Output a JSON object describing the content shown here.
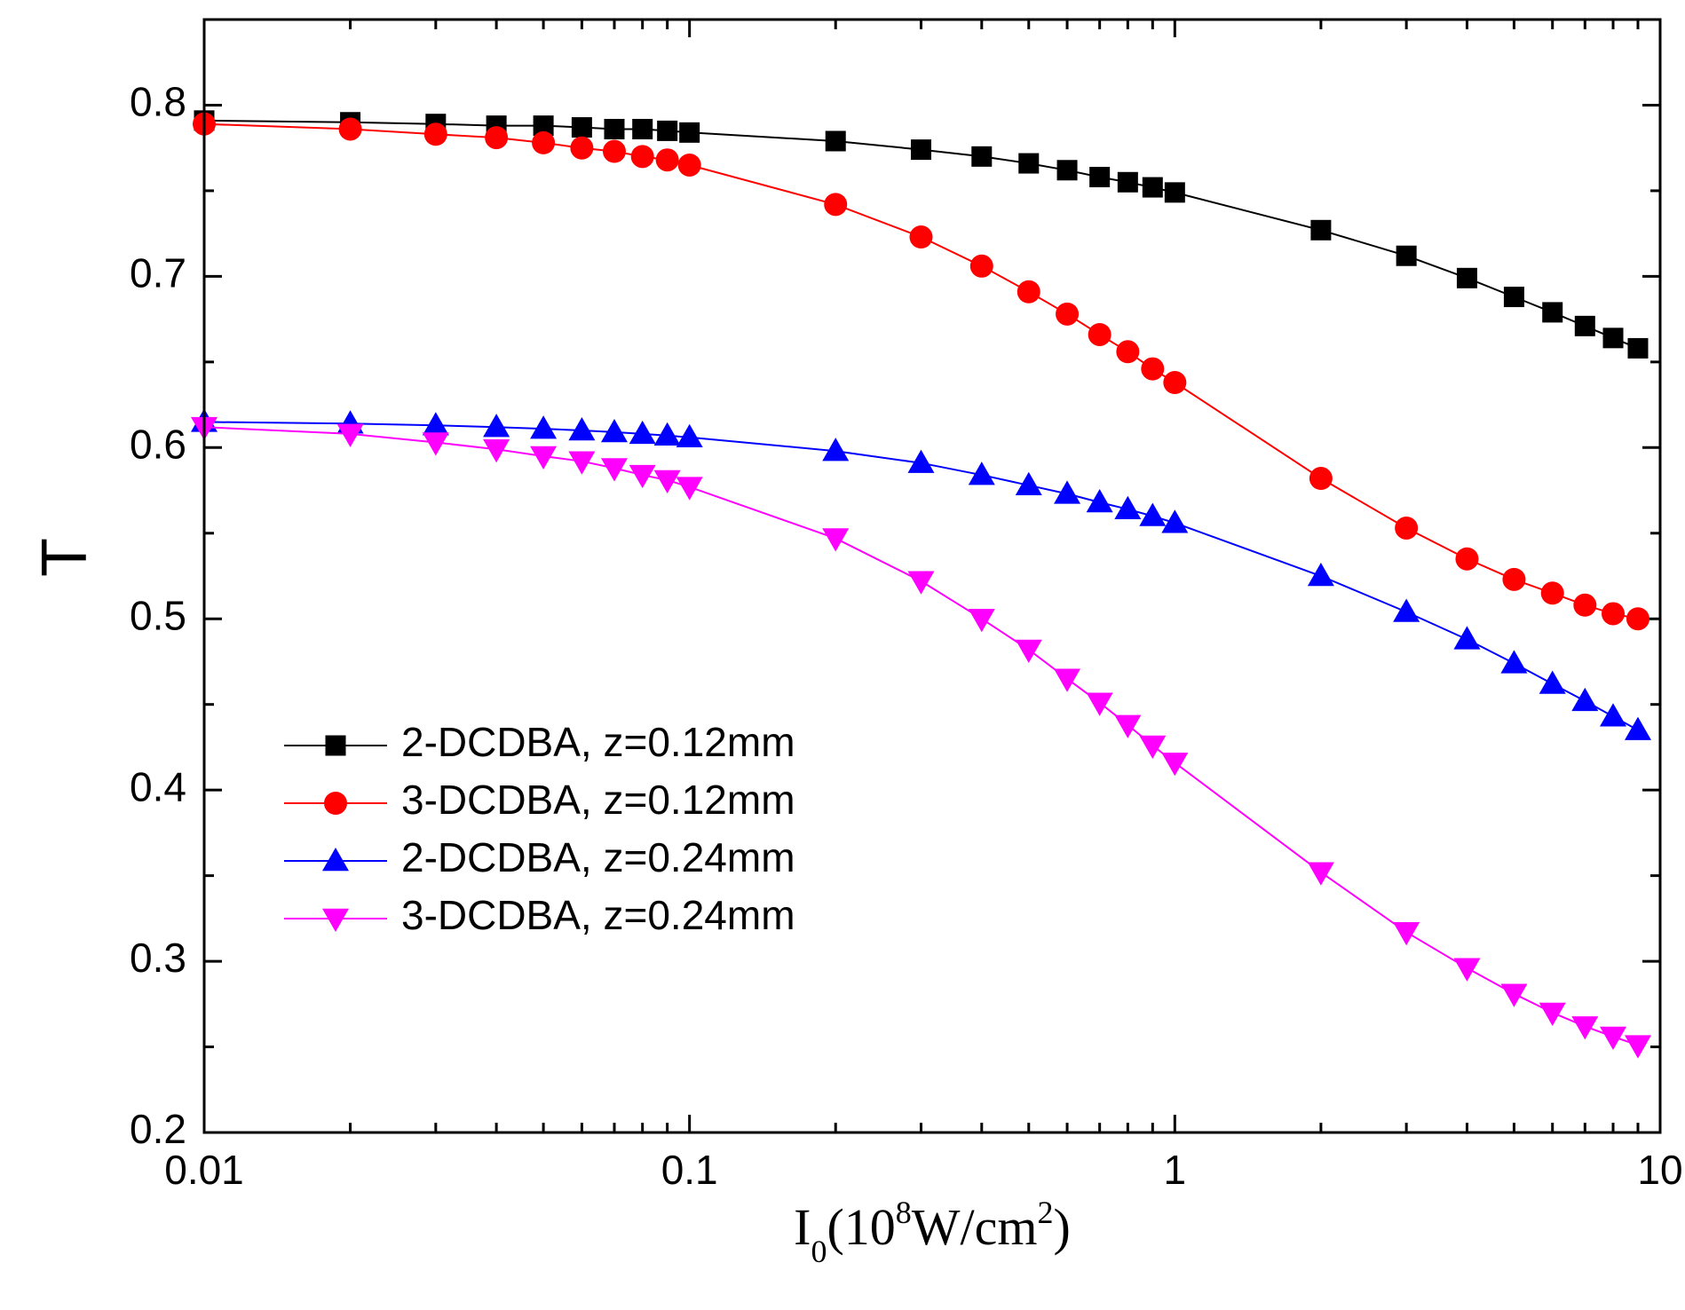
{
  "chart_data": {
    "type": "line",
    "title": "",
    "ylabel": "T",
    "xlabel": {
      "base": "I",
      "base_sub": "0",
      "paren_open": "(10",
      "exp": "8",
      "unit": "W/cm",
      "unit_exp": "2",
      "paren_close": ")"
    },
    "xscale": "log",
    "xlim": [
      0.01,
      10
    ],
    "ylim": [
      0.2,
      0.85
    ],
    "x_ticks": [
      0.01,
      0.1,
      1,
      10
    ],
    "x_tick_labels": [
      "0.01",
      "0.1",
      "1",
      "10"
    ],
    "y_ticks": [
      0.2,
      0.3,
      0.4,
      0.5,
      0.6,
      0.7,
      0.8
    ],
    "y_tick_labels": [
      "0.2",
      "0.3",
      "0.4",
      "0.5",
      "0.6",
      "0.7",
      "0.8"
    ],
    "legend_position": "lower-left",
    "grid": false,
    "x": [
      0.01,
      0.02,
      0.03,
      0.04,
      0.05,
      0.06,
      0.07,
      0.08,
      0.09,
      0.1,
      0.2,
      0.3,
      0.4,
      0.5,
      0.6,
      0.7,
      0.8,
      0.9,
      1,
      2,
      3,
      4,
      5,
      6,
      7,
      8,
      9
    ],
    "series": [
      {
        "name": "2-DCDBA, z=0.12mm",
        "color": "#000000",
        "marker": "square",
        "values": [
          0.791,
          0.79,
          0.789,
          0.788,
          0.788,
          0.787,
          0.786,
          0.786,
          0.785,
          0.784,
          0.779,
          0.774,
          0.77,
          0.766,
          0.762,
          0.758,
          0.755,
          0.752,
          0.749,
          0.727,
          0.712,
          0.699,
          0.688,
          0.679,
          0.671,
          0.664,
          0.658
        ]
      },
      {
        "name": "3-DCDBA, z=0.12mm",
        "color": "#ff0000",
        "marker": "circle",
        "values": [
          0.789,
          0.786,
          0.783,
          0.781,
          0.778,
          0.775,
          0.773,
          0.77,
          0.768,
          0.765,
          0.742,
          0.723,
          0.706,
          0.691,
          0.678,
          0.666,
          0.656,
          0.646,
          0.638,
          0.582,
          0.553,
          0.535,
          0.523,
          0.515,
          0.508,
          0.503,
          0.5
        ]
      },
      {
        "name": "2-DCDBA, z=0.24mm",
        "color": "#0000ff",
        "marker": "triangle-up",
        "values": [
          0.615,
          0.614,
          0.613,
          0.612,
          0.611,
          0.61,
          0.609,
          0.608,
          0.607,
          0.606,
          0.598,
          0.591,
          0.584,
          0.578,
          0.573,
          0.568,
          0.564,
          0.56,
          0.556,
          0.525,
          0.504,
          0.488,
          0.474,
          0.462,
          0.452,
          0.443,
          0.435
        ]
      },
      {
        "name": "3-DCDBA, z=0.24mm",
        "color": "#ff00ff",
        "marker": "triangle-down",
        "values": [
          0.612,
          0.608,
          0.603,
          0.599,
          0.595,
          0.592,
          0.588,
          0.584,
          0.581,
          0.577,
          0.547,
          0.522,
          0.5,
          0.482,
          0.465,
          0.451,
          0.438,
          0.426,
          0.416,
          0.352,
          0.317,
          0.296,
          0.281,
          0.27,
          0.262,
          0.256,
          0.251
        ]
      }
    ]
  }
}
